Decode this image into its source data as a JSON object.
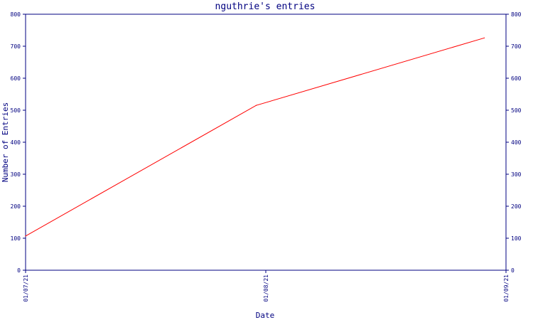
{
  "chart_data": {
    "type": "line",
    "title": "nguthrie's entries",
    "xlabel": "Date",
    "ylabel": "Number of Entries",
    "x_ticks": [
      "01/07/21",
      "01/08/21",
      "01/09/21"
    ],
    "ylim": [
      0,
      800
    ],
    "y_ticks": [
      "0",
      "100",
      "200",
      "300",
      "400",
      "500",
      "600",
      "700",
      "800"
    ],
    "dual_y_axis": true,
    "grid": false,
    "series": [
      {
        "color": "#ff0000",
        "x": [
          "01/07/21",
          "01/08/21 (approx. 23:00)",
          "01/09/21 (approx. 22:00)"
        ],
        "values": [
          107,
          515,
          726
        ]
      }
    ]
  }
}
